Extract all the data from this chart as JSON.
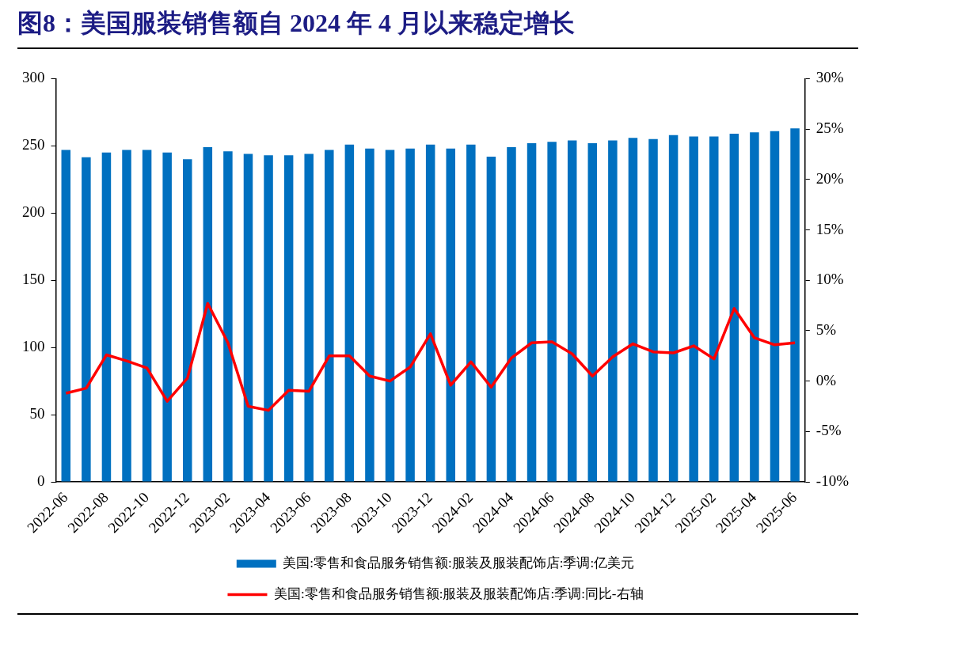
{
  "chart_data": {
    "type": "bar",
    "title": "图8：美国服装销售额自 2024 年 4 月以来稳定增长",
    "categories": [
      "2022-06",
      null,
      "2022-08",
      null,
      "2022-10",
      null,
      "2022-12",
      null,
      "2023-02",
      null,
      "2023-04",
      null,
      "2023-06",
      null,
      "2023-08",
      null,
      "2023-10",
      null,
      "2023-12",
      null,
      "2024-02",
      null,
      "2024-04",
      null,
      "2024-06",
      null,
      "2024-08",
      null,
      "2024-10",
      null,
      "2024-12",
      null,
      "2025-02",
      null,
      "2025-04",
      null,
      "2025-06"
    ],
    "series": [
      {
        "name": "美国:零售和食品服务销售额:服装及服装配饰店:季调:亿美元",
        "color": "#0070c0",
        "values": [
          247,
          241.5,
          245,
          247,
          247,
          245,
          240,
          249,
          246,
          244,
          243,
          243,
          244,
          247,
          251,
          248,
          247,
          248,
          251,
          248,
          251,
          242,
          249,
          252,
          253,
          254,
          252,
          254,
          256,
          255,
          258,
          257,
          257,
          259,
          260,
          261,
          263
        ]
      },
      {
        "name": "美国:零售和食品服务销售额:服装及服装配饰店:季调:同比-右轴",
        "type": "line",
        "axis": "y2",
        "color": "#ff0000",
        "values": [
          -1.2,
          -0.7,
          2.6,
          2.0,
          1.3,
          -2.0,
          0.3,
          7.7,
          3.8,
          -2.5,
          -2.9,
          -0.9,
          -1.0,
          2.5,
          2.5,
          0.5,
          0.0,
          1.4,
          4.7,
          -0.4,
          1.9,
          -0.6,
          2.3,
          3.8,
          3.9,
          2.7,
          0.5,
          2.4,
          3.7,
          2.9,
          2.8,
          3.5,
          2.2,
          7.2,
          4.3,
          3.6,
          3.8
        ]
      }
    ],
    "ylim": [
      0,
      300
    ],
    "yticks": [
      0,
      50,
      100,
      150,
      200,
      250,
      300
    ],
    "y2lim": [
      -10,
      30
    ],
    "y2ticks": [
      {
        "value": -10,
        "label": "-10%"
      },
      {
        "value": -5,
        "label": "-5%"
      },
      {
        "value": 0,
        "label": "0%"
      },
      {
        "value": 5,
        "label": "5%"
      },
      {
        "value": 10,
        "label": "10%"
      },
      {
        "value": 15,
        "label": "15%"
      },
      {
        "value": 20,
        "label": "20%"
      },
      {
        "value": 25,
        "label": "25%"
      },
      {
        "value": 30,
        "label": "30%"
      }
    ],
    "grid": false,
    "legend": "bottom",
    "marker": "none",
    "line_style": "solid"
  }
}
